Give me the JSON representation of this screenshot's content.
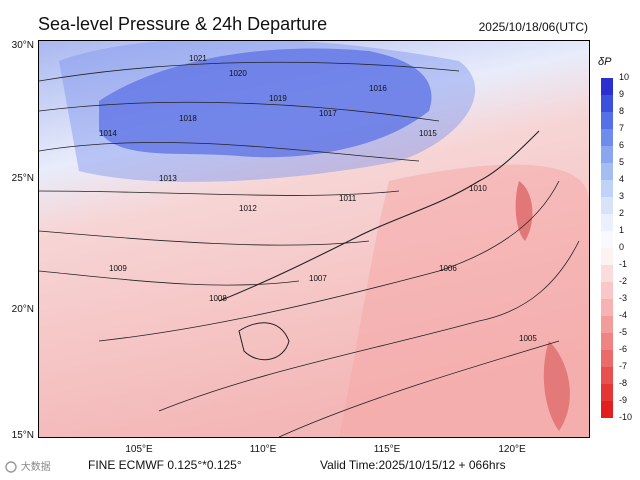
{
  "title": "Sea-level Pressure & 24h Departure",
  "datetime": "2025/10/18/06(UTC)",
  "lat_labels": [
    "30°N",
    "25°N",
    "20°N",
    "15°N"
  ],
  "lon_labels": [
    "105°E",
    "110°E",
    "115°E",
    "120°E"
  ],
  "colorbar": {
    "label": "δP",
    "ticks": [
      "10",
      "9",
      "8",
      "7",
      "6",
      "5",
      "4",
      "3",
      "2",
      "1",
      "0",
      "-1",
      "-2",
      "-3",
      "-4",
      "-5",
      "-6",
      "-7",
      "-8",
      "-9",
      "-10"
    ],
    "colors": [
      "#2b2fd0",
      "#3d4fde",
      "#5470e6",
      "#6e8cec",
      "#8aa6f0",
      "#a6bdf4",
      "#c0d2f7",
      "#d8e3fa",
      "#eaf0fd",
      "#f8f8ff",
      "#fdf1f1",
      "#fbdcdc",
      "#f8c8c8",
      "#f5b3b3",
      "#f29c9c",
      "#ef8484",
      "#eb6a6a",
      "#e84f4f",
      "#e53636",
      "#e21e1e"
    ]
  },
  "isobars": [
    "1021",
    "1020",
    "1019",
    "1018",
    "1017",
    "1016",
    "1015",
    "1014",
    "1013",
    "1012",
    "1011",
    "1010",
    "1009",
    "1008",
    "1007",
    "1006",
    "1005"
  ],
  "footer": {
    "brand": "大数据",
    "model": "FINE ECMWF 0.125°*0.125°",
    "valid": "Valid Time:2025/10/15/12 + 066hrs"
  },
  "accent": {
    "high": "#3b4fd8",
    "low": "#f0a0a0"
  }
}
